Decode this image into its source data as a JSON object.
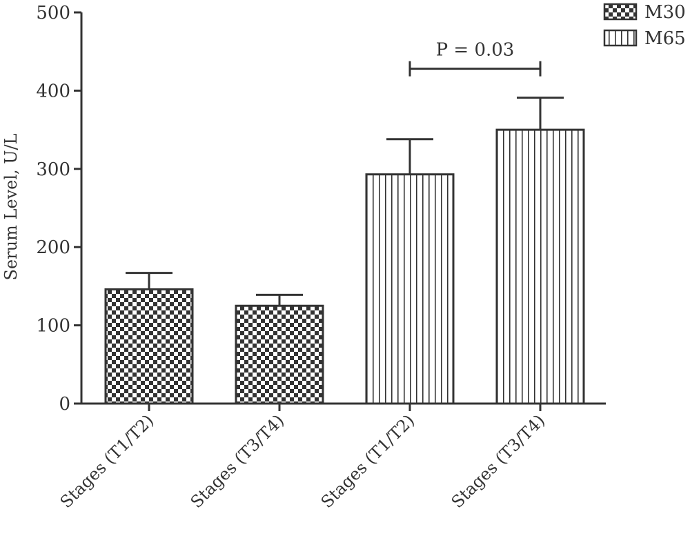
{
  "chart_data": {
    "type": "bar",
    "title": "",
    "xlabel": "",
    "ylabel": "Serum Level, U/L",
    "ylim": [
      0,
      500
    ],
    "yticks": [
      0,
      100,
      200,
      300,
      400,
      500
    ],
    "categories": [
      "Stages (T1/T2)",
      "Stages (T3/T4)",
      "Stages (T1/T2)",
      "Stages (T3/T4)"
    ],
    "bars": [
      {
        "category": "Stages (T1/T2)",
        "series": "M30",
        "value": 146,
        "error": 21
      },
      {
        "category": "Stages (T3/T4)",
        "series": "M30",
        "value": 125,
        "error": 14
      },
      {
        "category": "Stages (T1/T2)",
        "series": "M65",
        "value": 293,
        "error": 45
      },
      {
        "category": "Stages (T3/T4)",
        "series": "M65",
        "value": 350,
        "error": 41
      }
    ],
    "legend": {
      "position": "top-right",
      "entries": [
        {
          "name": "M30",
          "pattern": "checkered"
        },
        {
          "name": "M65",
          "pattern": "vertical-stripes"
        }
      ]
    },
    "annotations": [
      {
        "text": "P = 0.03",
        "from_bar": 2,
        "to_bar": 3,
        "y": 428
      }
    ],
    "grid": false,
    "colors": {
      "axis": "#333333",
      "fill_dark": "#333333",
      "fill_light": "#ffffff"
    }
  }
}
